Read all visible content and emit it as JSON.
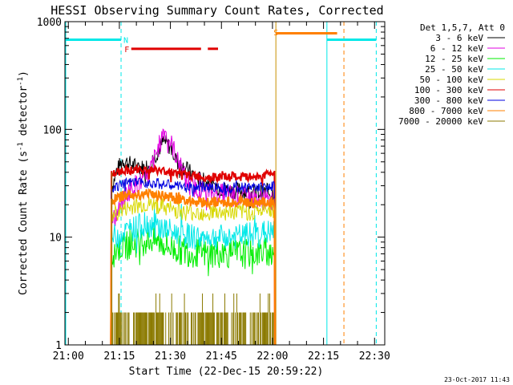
{
  "chart_data": {
    "type": "line",
    "title": "HESSI Observing Summary Count Rates, Corrected",
    "xlabel": "Start Time (22-Dec-15 20:59:22)",
    "ylabel_main": "Corrected Count Rate (s",
    "ylabel_sup1": "-1",
    "ylabel_mid": " detector",
    "ylabel_sup2": "-1",
    "ylabel_end": ")",
    "yscale": "log",
    "ylim": [
      1,
      1000
    ],
    "xlim_minutes": [
      -1,
      93
    ],
    "x_ticks": [
      {
        "label": "21:00",
        "minute": 0
      },
      {
        "label": "21:15",
        "minute": 15
      },
      {
        "label": "21:30",
        "minute": 30
      },
      {
        "label": "21:45",
        "minute": 45
      },
      {
        "label": "22:00",
        "minute": 60
      },
      {
        "label": "22:15",
        "minute": 75
      },
      {
        "label": "22:30",
        "minute": 90
      }
    ],
    "y_ticks": [
      {
        "label": "1",
        "value": 1
      },
      {
        "label": "10",
        "value": 10
      },
      {
        "label": "100",
        "value": 100
      },
      {
        "label": "1000",
        "value": 1000
      }
    ],
    "legend_header": "Det 1,5,7, Att 0",
    "legend_placement": "right",
    "series": [
      {
        "name": "3 - 6 keV",
        "color": "#000000",
        "base": 30,
        "noise": 0.08,
        "points": [
          [
            13,
            30
          ],
          [
            14,
            40
          ],
          [
            16,
            52
          ],
          [
            18,
            48
          ],
          [
            20,
            45
          ],
          [
            22,
            44
          ],
          [
            24,
            47
          ],
          [
            26,
            60
          ],
          [
            28,
            78
          ],
          [
            30,
            68
          ],
          [
            32,
            50
          ],
          [
            35,
            42
          ],
          [
            38,
            35
          ],
          [
            41,
            32
          ],
          [
            44,
            29
          ],
          [
            47,
            27
          ],
          [
            50,
            27
          ],
          [
            53,
            26
          ],
          [
            56,
            26
          ],
          [
            60,
            26
          ]
        ]
      },
      {
        "name": "6 - 12 keV",
        "color": "#e000e0",
        "base": 17,
        "noise": 0.1,
        "points": [
          [
            13,
            14
          ],
          [
            15,
            18
          ],
          [
            17,
            25
          ],
          [
            19,
            30
          ],
          [
            21,
            32
          ],
          [
            23,
            34
          ],
          [
            25,
            50
          ],
          [
            27,
            75
          ],
          [
            28,
            100
          ],
          [
            29,
            90
          ],
          [
            31,
            65
          ],
          [
            33,
            45
          ],
          [
            35,
            32
          ],
          [
            38,
            28
          ],
          [
            42,
            26
          ],
          [
            46,
            25
          ],
          [
            50,
            24
          ],
          [
            54,
            23
          ],
          [
            58,
            22
          ],
          [
            60,
            22
          ]
        ]
      },
      {
        "name": "12 - 25 keV",
        "color": "#00ee00",
        "base": 7.5,
        "noise": 0.14,
        "points": [
          [
            13,
            7
          ],
          [
            15,
            8
          ],
          [
            18,
            8.5
          ],
          [
            21,
            9
          ],
          [
            24,
            9.5
          ],
          [
            27,
            9
          ],
          [
            30,
            8
          ],
          [
            33,
            7.5
          ],
          [
            36,
            7.2
          ],
          [
            40,
            7
          ],
          [
            44,
            7
          ],
          [
            48,
            7
          ],
          [
            52,
            7
          ],
          [
            56,
            7.2
          ],
          [
            60,
            7.5
          ]
        ]
      },
      {
        "name": "25 - 50 keV",
        "color": "#00e8e8",
        "base": 10.5,
        "noise": 0.12,
        "points": [
          [
            13,
            10
          ],
          [
            16,
            11
          ],
          [
            19,
            12
          ],
          [
            22,
            13
          ],
          [
            25,
            13
          ],
          [
            28,
            12
          ],
          [
            31,
            11
          ],
          [
            34,
            10.5
          ],
          [
            37,
            10
          ],
          [
            41,
            10
          ],
          [
            45,
            10
          ],
          [
            49,
            10
          ],
          [
            53,
            10.5
          ],
          [
            57,
            11
          ],
          [
            60,
            11
          ]
        ]
      },
      {
        "name": "50 - 100 keV",
        "color": "#d8d800",
        "base": 17,
        "noise": 0.08,
        "points": [
          [
            13,
            16
          ],
          [
            16,
            18
          ],
          [
            19,
            19
          ],
          [
            22,
            20
          ],
          [
            25,
            20
          ],
          [
            28,
            19
          ],
          [
            31,
            18
          ],
          [
            34,
            17
          ],
          [
            37,
            17
          ],
          [
            41,
            17
          ],
          [
            45,
            17
          ],
          [
            49,
            17
          ],
          [
            53,
            17
          ],
          [
            57,
            17.5
          ],
          [
            60,
            18
          ]
        ]
      },
      {
        "name": "100 - 300 keV",
        "color": "#e00000",
        "base": 40,
        "noise": 0.04,
        "points": [
          [
            13,
            38
          ],
          [
            16,
            42
          ],
          [
            19,
            42
          ],
          [
            22,
            42
          ],
          [
            25,
            42
          ],
          [
            28,
            41
          ],
          [
            31,
            40
          ],
          [
            34,
            38
          ],
          [
            37,
            37
          ],
          [
            41,
            36
          ],
          [
            45,
            36
          ],
          [
            49,
            36
          ],
          [
            53,
            36
          ],
          [
            57,
            37
          ],
          [
            60,
            40
          ]
        ]
      },
      {
        "name": "300 - 800 keV",
        "color": "#0000e0",
        "base": 30,
        "noise": 0.05,
        "points": [
          [
            13,
            29
          ],
          [
            16,
            31
          ],
          [
            19,
            32
          ],
          [
            22,
            32
          ],
          [
            25,
            32
          ],
          [
            28,
            31
          ],
          [
            31,
            30
          ],
          [
            34,
            29
          ],
          [
            37,
            29
          ],
          [
            41,
            29
          ],
          [
            45,
            29
          ],
          [
            49,
            29
          ],
          [
            53,
            29
          ],
          [
            57,
            29
          ],
          [
            60,
            30
          ]
        ]
      },
      {
        "name": "800 - 7000 keV",
        "color": "#ff8000",
        "base": 22,
        "noise": 0.05,
        "points": [
          [
            13,
            22
          ],
          [
            16,
            24
          ],
          [
            19,
            25
          ],
          [
            22,
            25
          ],
          [
            25,
            25
          ],
          [
            28,
            24
          ],
          [
            31,
            23
          ],
          [
            34,
            22
          ],
          [
            37,
            21.5
          ],
          [
            41,
            21
          ],
          [
            45,
            21
          ],
          [
            49,
            21
          ],
          [
            53,
            21
          ],
          [
            57,
            21
          ],
          [
            60,
            21
          ]
        ]
      },
      {
        "name": "7000 - 20000 keV",
        "color": "#8b7a00",
        "base": 1.5,
        "noise": 0.0,
        "points": [
          [
            13,
            2
          ],
          [
            60,
            2
          ]
        ]
      }
    ],
    "annotations": [
      {
        "label": "N",
        "color": "#00e8e8",
        "minute": 16.2,
        "value": 680
      },
      {
        "label": "F",
        "color": "#e00000",
        "minute": 16.5,
        "value": 560
      },
      {
        "label": "S",
        "color": "#ff8000",
        "minute": 60.3,
        "value": 800
      }
    ],
    "state_bars": [
      {
        "kind": "night",
        "color": "#00e8e8",
        "segments": [
          [
            -1,
            15.5
          ],
          [
            76,
            90.5
          ]
        ],
        "value": 680
      },
      {
        "kind": "flare",
        "color": "#e00000",
        "segments": [
          [
            18.5,
            39
          ],
          [
            41,
            44
          ]
        ],
        "value": 560
      },
      {
        "kind": "saa",
        "color": "#ff8000",
        "segments": [
          [
            61,
            79
          ]
        ],
        "value": 780
      }
    ],
    "vertical_markers": [
      {
        "minute": 15.5,
        "color": "#00e8e8",
        "style": "dashed"
      },
      {
        "minute": 61,
        "color": "#c89000",
        "style": "solid"
      },
      {
        "minute": 76,
        "color": "#00e8e8",
        "style": "solid"
      },
      {
        "minute": 81,
        "color": "#ff8000",
        "style": "dashed"
      },
      {
        "minute": 90.5,
        "color": "#00e8e8",
        "style": "dashed"
      }
    ],
    "data_window_minutes": [
      12.5,
      61
    ],
    "footer_date": "23-Oct-2017 11:43"
  }
}
